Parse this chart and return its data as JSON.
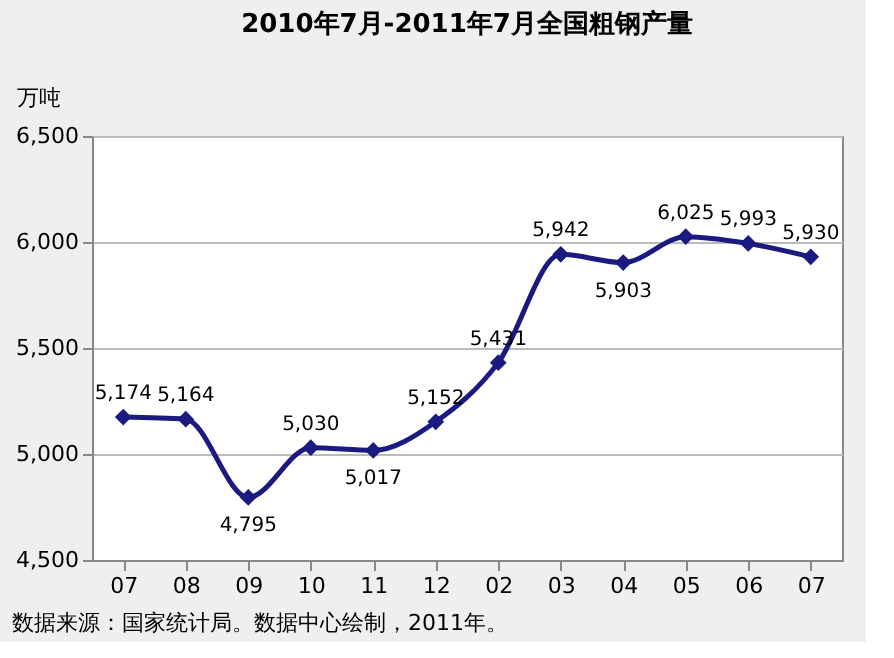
{
  "chart_data": {
    "type": "line",
    "title": "2010年7月-2011年7月全国粗钢产量",
    "ylabel": "万吨",
    "categories": [
      "07",
      "08",
      "09",
      "10",
      "11",
      "12",
      "02",
      "03",
      "04",
      "05",
      "06",
      "07"
    ],
    "series": [
      {
        "color": "#1a1a80",
        "values": [
          5174,
          5164,
          4795,
          5030,
          5017,
          5152,
          5431,
          5942,
          5903,
          6025,
          5993,
          5930
        ],
        "value_labels": [
          "5,174",
          "5,164",
          "4,795",
          "5,030",
          "5,017",
          "5,152",
          "5,431",
          "5,942",
          "5,903",
          "6,025",
          "5,993",
          "5,930"
        ]
      }
    ],
    "ylim": [
      4500,
      6500
    ],
    "yticks": [
      {
        "value": 4500,
        "label": "4,500"
      },
      {
        "value": 5000,
        "label": "5,000"
      },
      {
        "value": 5500,
        "label": "5,500"
      },
      {
        "value": 6000,
        "label": "6,000"
      },
      {
        "value": 6500,
        "label": "6,500"
      }
    ],
    "grid": "y",
    "marker": "diamond",
    "line_style": "solid",
    "annotations": [
      "数据来源：国家统计局。数据中心绘制，2011年。"
    ]
  }
}
